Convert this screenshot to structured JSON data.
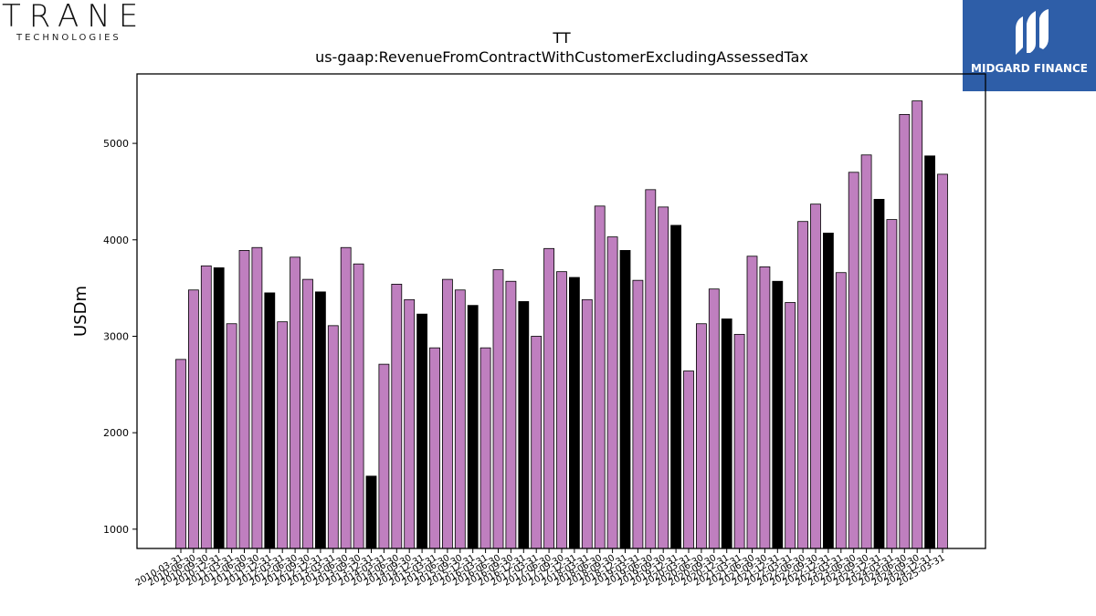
{
  "logos": {
    "left_name": "TRANE",
    "left_sub": "TECHNOLOGIES",
    "right_name": "MIDGARD FINANCE"
  },
  "chart_data": {
    "type": "bar",
    "title": "TT",
    "subtitle": "us-gaap:RevenueFromContractWithCustomerExcludingAssessedTax",
    "xlabel": "",
    "ylabel": "USDm",
    "ylim": [
      800,
      5720
    ],
    "yticks": [
      1000,
      2000,
      3000,
      4000,
      5000
    ],
    "grid": false,
    "colors": {
      "quarter": "#bf7fbf",
      "annual": "#000000",
      "edge": "#000000"
    },
    "categories": [
      "2010-03-31",
      "2010-06-30",
      "2010-09-30",
      "2010-12-31",
      "2011-03-31",
      "2011-06-30",
      "2011-09-30",
      "2011-12-31",
      "2012-03-31",
      "2012-06-30",
      "2012-09-30",
      "2012-12-31",
      "2013-03-31",
      "2013-06-30",
      "2013-09-30",
      "2013-12-31",
      "2014-03-31",
      "2014-06-30",
      "2014-09-30",
      "2014-12-31",
      "2015-03-31",
      "2015-06-30",
      "2015-09-30",
      "2015-12-31",
      "2016-03-31",
      "2016-06-30",
      "2016-09-30",
      "2016-12-31",
      "2017-03-31",
      "2017-06-30",
      "2017-09-30",
      "2017-12-31",
      "2018-03-31",
      "2018-06-30",
      "2018-09-30",
      "2018-12-31",
      "2019-03-31",
      "2019-06-30",
      "2019-09-30",
      "2019-12-31",
      "2020-03-31",
      "2020-06-30",
      "2020-09-30",
      "2020-12-31",
      "2021-03-31",
      "2021-06-30",
      "2021-09-30",
      "2021-12-31",
      "2022-03-31",
      "2022-06-30",
      "2022-09-30",
      "2022-12-31",
      "2023-03-31",
      "2023-06-30",
      "2023-09-30",
      "2023-12-31",
      "2024-03-31",
      "2024-06-30",
      "2024-09-30",
      "2024-12-31",
      "2025-03-31"
    ],
    "values": [
      2760,
      3480,
      3730,
      3710,
      3130,
      3890,
      3920,
      3450,
      3150,
      3820,
      3590,
      3460,
      3110,
      3920,
      3750,
      1550,
      2710,
      3540,
      3380,
      3230,
      2880,
      3590,
      3480,
      3320,
      2880,
      3690,
      3570,
      3360,
      3000,
      3910,
      3670,
      3610,
      3380,
      4350,
      4030,
      3890,
      3580,
      4520,
      4340,
      4150,
      2640,
      3130,
      3490,
      3180,
      3020,
      3830,
      3720,
      3570,
      3350,
      4190,
      4370,
      4070,
      3660,
      4700,
      4880,
      4420,
      4210,
      5300,
      5440,
      4870,
      4680
    ],
    "highlight_pattern": "every 4th bar (December) drawn black"
  }
}
